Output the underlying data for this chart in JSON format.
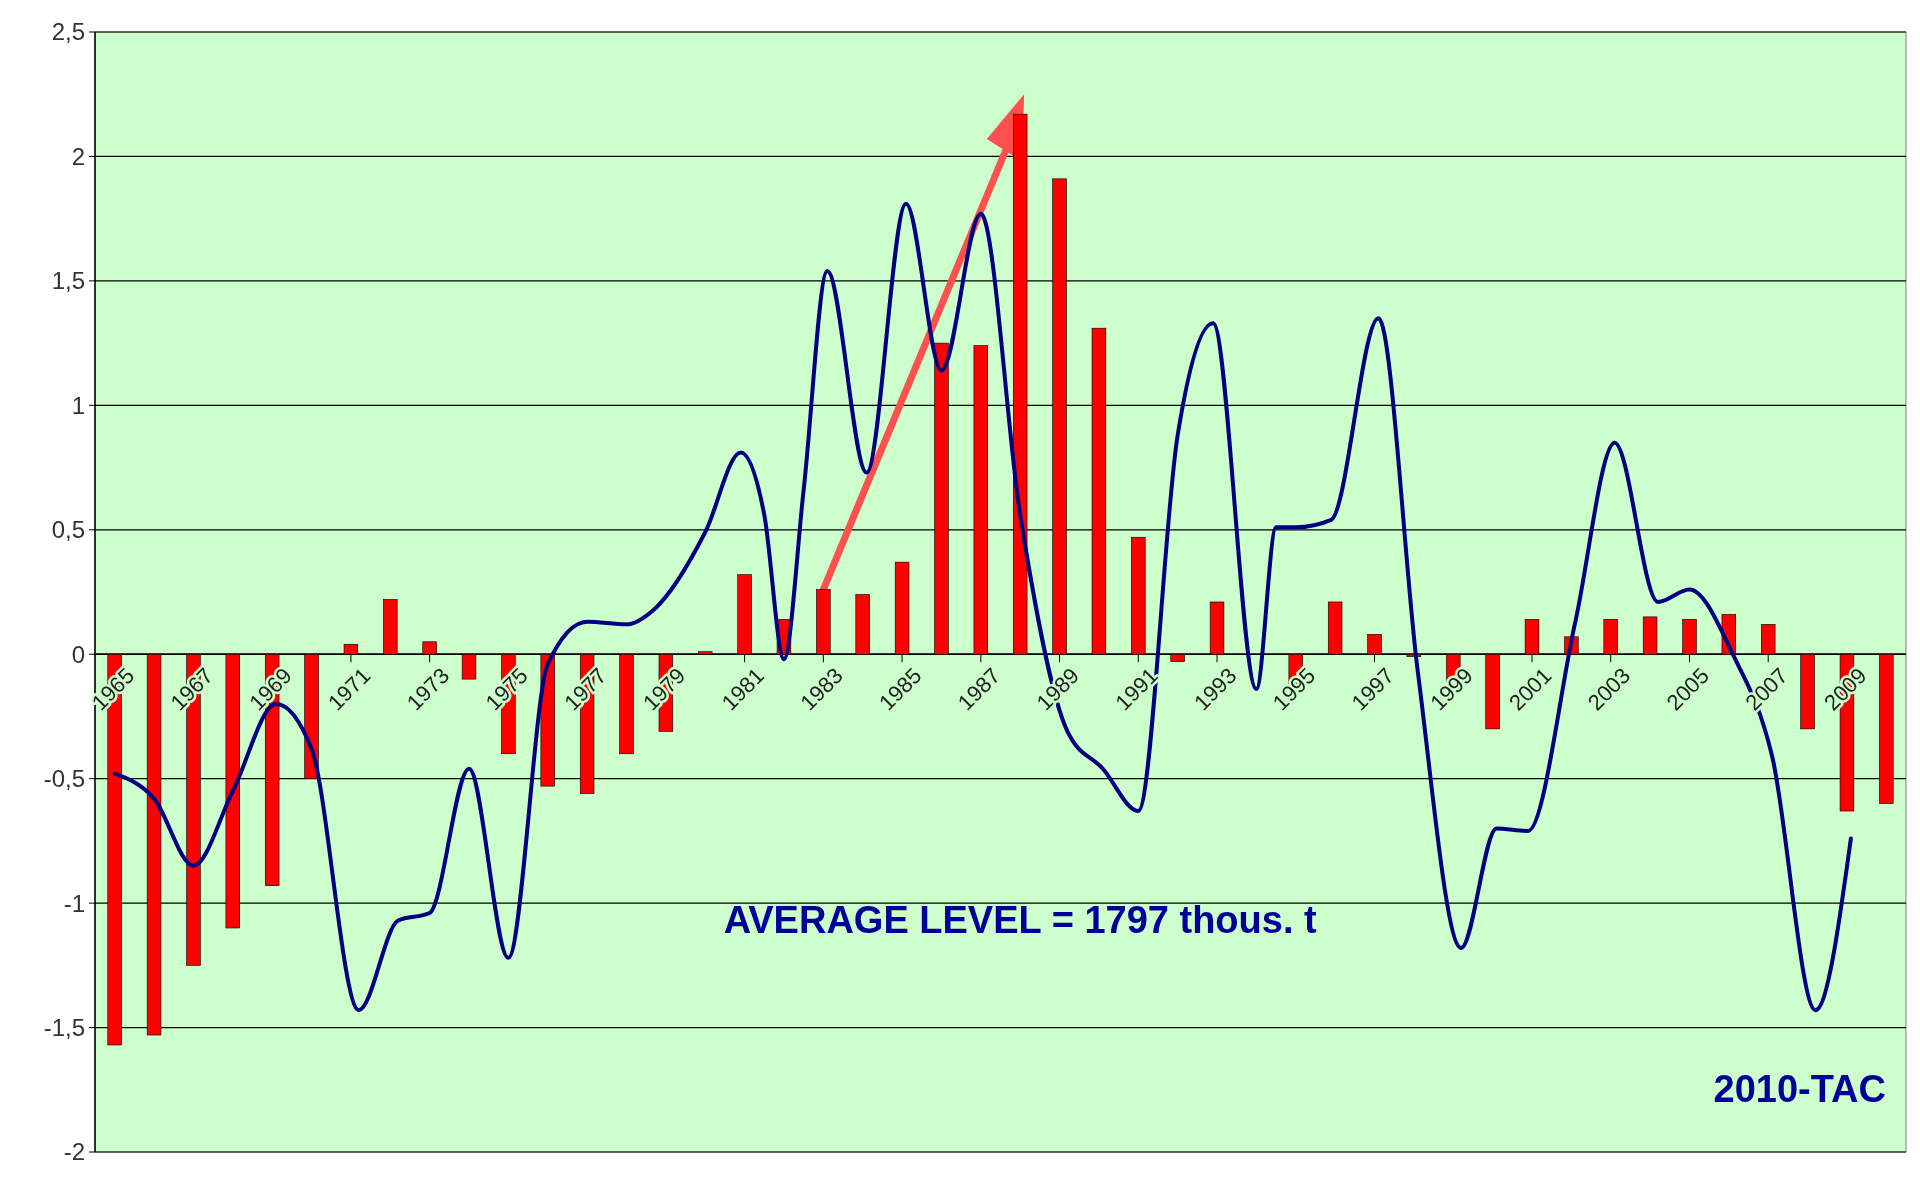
{
  "chart_data": {
    "type": "bar",
    "x": [
      1965,
      1966,
      1967,
      1968,
      1969,
      1970,
      1971,
      1972,
      1973,
      1974,
      1975,
      1976,
      1977,
      1978,
      1979,
      1980,
      1981,
      1982,
      1983,
      1984,
      1985,
      1986,
      1987,
      1988,
      1989,
      1990,
      1991,
      1992,
      1993,
      1994,
      1995,
      1996,
      1997,
      1998,
      1999,
      2000,
      2001,
      2002,
      2003,
      2004,
      2005,
      2006,
      2007,
      2008,
      2009,
      2010
    ],
    "series": [
      {
        "color": "#ff0000",
        "values": [
          -1.57,
          -1.53,
          -1.25,
          -1.1,
          -0.93,
          -0.5,
          0.04,
          0.22,
          0.05,
          -0.1,
          -0.4,
          -0.53,
          -0.56,
          -0.4,
          -0.31,
          0.01,
          0.32,
          0.14,
          0.26,
          0.24,
          0.37,
          1.25,
          1.24,
          2.17,
          1.91,
          1.31,
          0.47,
          -0.03,
          0.21,
          0,
          -0.14,
          0.21,
          0.08,
          -0.01,
          -0.11,
          -0.3,
          0.14,
          0.07,
          0.14,
          0.15,
          0.14,
          0.16,
          0.12,
          -0.3,
          -0.63,
          -0.6
        ]
      },
      {
        "type": "line",
        "color": "#000080",
        "x": [
          1965,
          1966,
          1967,
          1968,
          1969.1,
          1970,
          1971.2,
          1972.2,
          1973,
          1974,
          1975,
          1976,
          1977,
          1978,
          1978.7,
          1980,
          1980.9,
          1981.5,
          1982,
          1982.5,
          1983.1,
          1984.1,
          1985.1,
          1986,
          1987,
          1988,
          1989.2,
          1990.1,
          1991,
          1992,
          1992.9,
          1994,
          1994.5,
          1995,
          1995.9,
          1997.1,
          1998.1,
          1999.2,
          2000.1,
          2000.9,
          2002.1,
          2003.1,
          2004.2,
          2005,
          2006.1,
          2007.1,
          2008.2,
          2009.1
        ],
        "values": [
          -0.48,
          -0.58,
          -0.85,
          -0.55,
          -0.2,
          -0.38,
          -1.43,
          -1.07,
          -1.04,
          -0.46,
          -1.22,
          -0.04,
          0.13,
          0.12,
          0.18,
          0.49,
          0.81,
          0.56,
          -0.02,
          0.66,
          1.54,
          0.73,
          1.81,
          1.14,
          1.77,
          0.56,
          -0.31,
          -0.46,
          -0.63,
          0.88,
          1.33,
          -0.14,
          0.51,
          0.51,
          0.54,
          1.35,
          -0.07,
          -1.18,
          -0.7,
          -0.71,
          0.13,
          0.85,
          0.21,
          0.26,
          0,
          -0.41,
          -1.43,
          -0.74
        ]
      }
    ],
    "xlim": [
      1964.5,
      2010.5
    ],
    "xticks": [
      1965,
      1967,
      1969,
      1971,
      1973,
      1975,
      1977,
      1979,
      1981,
      1983,
      1985,
      1987,
      1989,
      1991,
      1993,
      1995,
      1997,
      1999,
      2001,
      2003,
      2005,
      2007,
      2009
    ],
    "ylim": [
      -2,
      2.5
    ],
    "yticks": [
      -2,
      {
        "value": -1.5,
        "label": "-1,5"
      },
      -1,
      {
        "value": -0.5,
        "label": "-0,5"
      },
      0,
      {
        "value": 0.5,
        "label": "0,5"
      },
      1,
      {
        "value": 1.5,
        "label": "1,5"
      },
      2,
      {
        "value": 2.5,
        "label": "2,5"
      }
    ],
    "grid": "y",
    "marker": "none",
    "line_style": "solid",
    "annotations": [
      "AVERAGE LEVEL = 1797 thous. t",
      "2010-TAC"
    ]
  }
}
